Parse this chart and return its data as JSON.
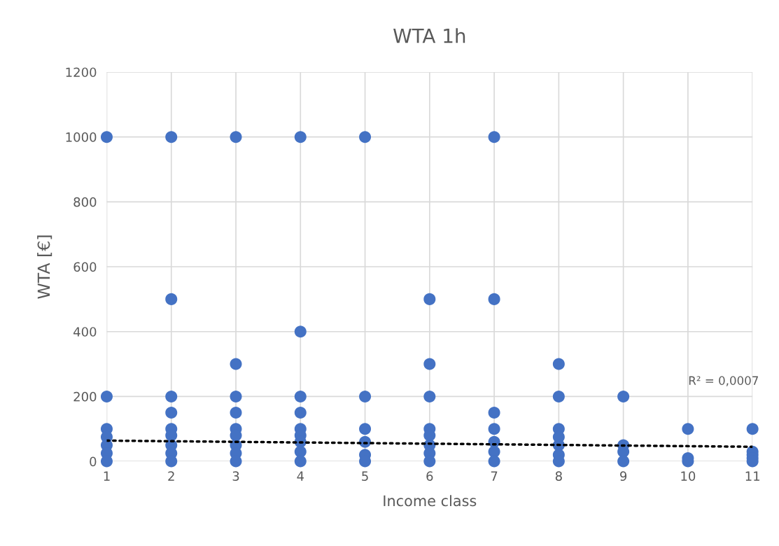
{
  "chart_data": {
    "type": "scatter",
    "title": "WTA 1h",
    "xlabel": "Income class",
    "ylabel": "WTA [€]",
    "xlim": [
      1,
      11
    ],
    "xticks": [
      1,
      2,
      3,
      4,
      5,
      6,
      7,
      8,
      9,
      10,
      11
    ],
    "ylim": [
      0,
      1200
    ],
    "yticks": [
      0,
      200,
      400,
      600,
      800,
      1000,
      1200
    ],
    "grid": true,
    "legend": false,
    "series": [
      {
        "color": "#4472c4",
        "marker": "circle",
        "x": [
          1,
          1,
          1,
          1,
          1,
          1,
          1,
          2,
          2,
          2,
          2,
          2,
          2,
          2,
          2,
          2,
          3,
          3,
          3,
          3,
          3,
          3,
          3,
          3,
          3,
          4,
          4,
          4,
          4,
          4,
          4,
          4,
          4,
          4,
          5,
          5,
          5,
          5,
          5,
          5,
          6,
          6,
          6,
          6,
          6,
          6,
          6,
          6,
          7,
          7,
          7,
          7,
          7,
          7,
          7,
          8,
          8,
          8,
          8,
          8,
          8,
          8,
          9,
          9,
          9,
          9,
          10,
          10,
          10,
          11,
          11,
          11,
          11,
          11
        ],
        "values": [
          1000,
          200,
          100,
          75,
          50,
          25,
          0,
          1000,
          500,
          200,
          150,
          100,
          80,
          50,
          25,
          0,
          1000,
          300,
          200,
          150,
          100,
          80,
          50,
          25,
          0,
          1000,
          400,
          200,
          150,
          100,
          80,
          60,
          30,
          0,
          1000,
          200,
          100,
          60,
          20,
          0,
          500,
          300,
          200,
          100,
          80,
          50,
          25,
          0,
          1000,
          500,
          150,
          100,
          60,
          30,
          0,
          300,
          200,
          100,
          75,
          50,
          20,
          0,
          200,
          50,
          30,
          0,
          100,
          10,
          0,
          100,
          30,
          20,
          10,
          0
        ]
      },
      {
        "type": "line",
        "color": "#000000",
        "marker": "none",
        "line_style": "dotted",
        "x": [
          1,
          11
        ],
        "values": [
          64,
          45
        ]
      }
    ],
    "annotations": [
      "R² = 0,0007"
    ]
  }
}
